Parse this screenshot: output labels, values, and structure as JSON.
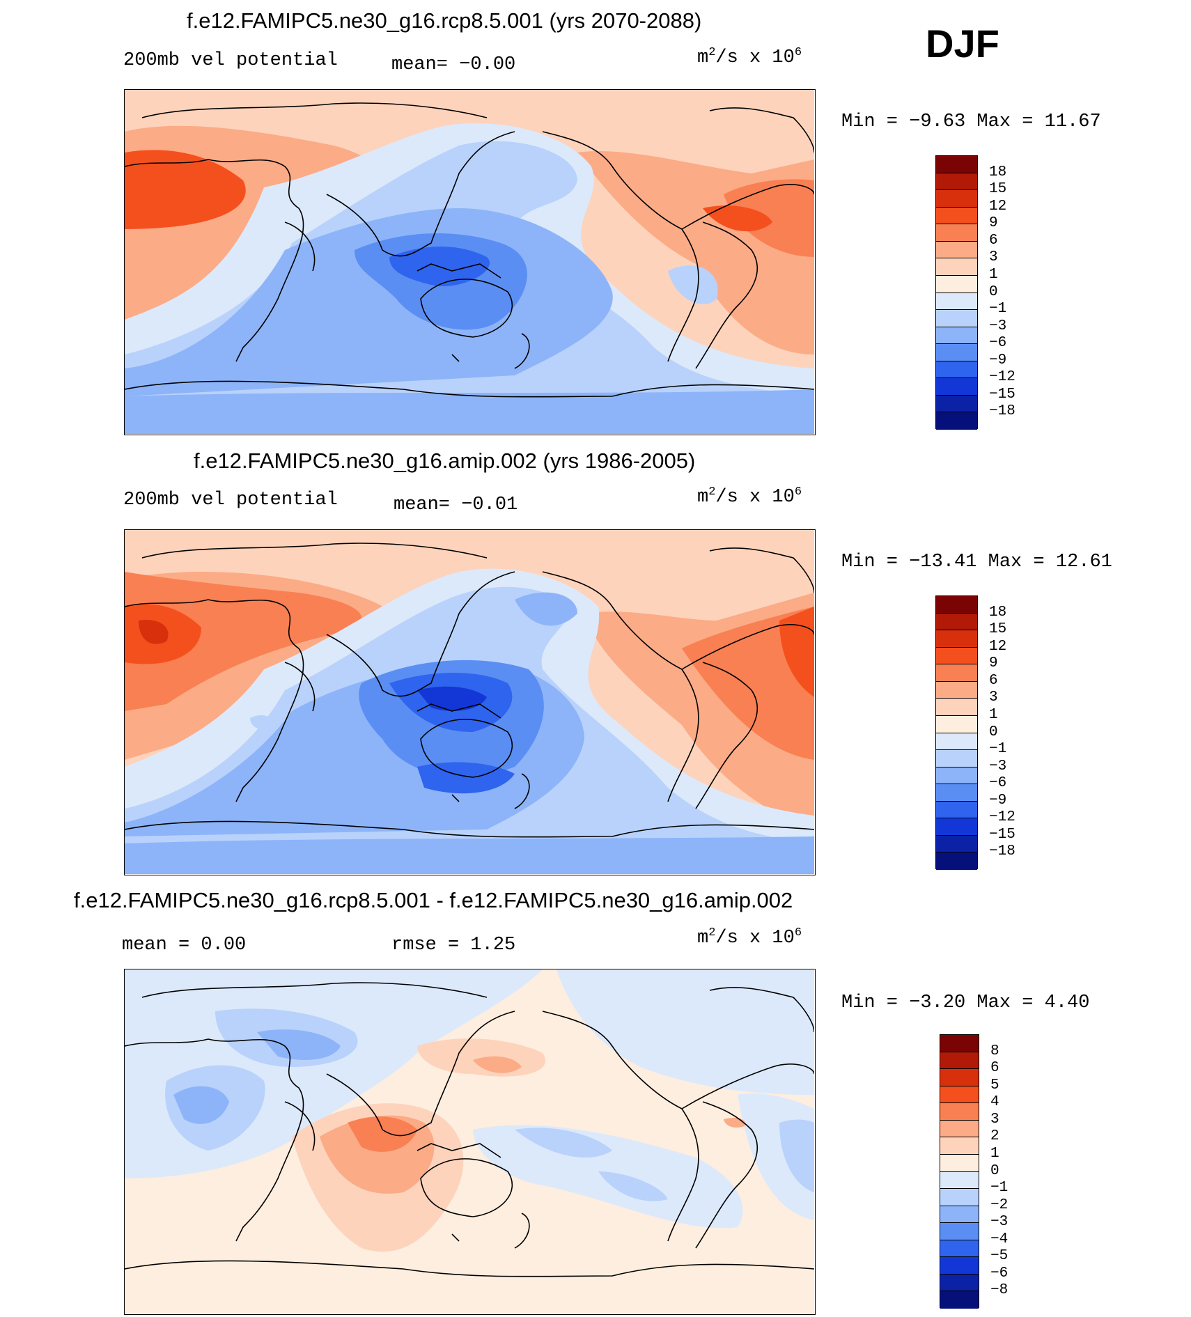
{
  "season": "DJF",
  "units_base": "m",
  "units_exp": "2",
  "units_mid": "/s x 10",
  "units_pow": "6",
  "panels": [
    {
      "title": "f.e12.FAMIPC5.ne30_g16.rcp8.5.001 (yrs 2070-2088)",
      "left": "200mb vel potential",
      "center": "mean=  −0.00",
      "minmax": "Min =  −9.63 Max =  11.67",
      "colorbar": {
        "labels": [
          "18",
          "15",
          "12",
          "9",
          "6",
          "3",
          "1",
          "0",
          "−1",
          "−3",
          "−6",
          "−9",
          "−12",
          "−15",
          "−18"
        ],
        "colors": [
          "#7a0403",
          "#b11a06",
          "#d8300d",
          "#f4501e",
          "#f98052",
          "#fbab86",
          "#fdd3bc",
          "#fdeedf",
          "#dce9fb",
          "#b9d2fb",
          "#8db4f8",
          "#5a8ef3",
          "#2f64ee",
          "#1237d6",
          "#0c22a6",
          "#06107a"
        ]
      },
      "stats": {
        "min": -9.63,
        "max": 11.67,
        "mean": -0.0
      }
    },
    {
      "title": "f.e12.FAMIPC5.ne30_g16.amip.002 (yrs 1986-2005)",
      "left": "200mb vel potential",
      "center": "mean=  −0.01",
      "minmax": "Min = −13.41 Max =  12.61",
      "colorbar": {
        "labels": [
          "18",
          "15",
          "12",
          "9",
          "6",
          "3",
          "1",
          "0",
          "−1",
          "−3",
          "−6",
          "−9",
          "−12",
          "−15",
          "−18"
        ],
        "colors": [
          "#7a0403",
          "#b11a06",
          "#d8300d",
          "#f4501e",
          "#f98052",
          "#fbab86",
          "#fdd3bc",
          "#fdeedf",
          "#dce9fb",
          "#b9d2fb",
          "#8db4f8",
          "#5a8ef3",
          "#2f64ee",
          "#1237d6",
          "#0c22a6",
          "#06107a"
        ]
      },
      "stats": {
        "min": -13.41,
        "max": 12.61,
        "mean": -0.01
      }
    },
    {
      "title": "f.e12.FAMIPC5.ne30_g16.rcp8.5.001 - f.e12.FAMIPC5.ne30_g16.amip.002",
      "left": "mean =    0.00",
      "center": "rmse =    1.25",
      "minmax": "Min =  −3.20 Max =   4.40",
      "colorbar": {
        "labels": [
          "8",
          "6",
          "5",
          "4",
          "3",
          "2",
          "1",
          "0",
          "−1",
          "−2",
          "−3",
          "−4",
          "−5",
          "−6",
          "−8"
        ],
        "colors": [
          "#7a0403",
          "#b11a06",
          "#d8300d",
          "#f4501e",
          "#f98052",
          "#fbab86",
          "#fdd3bc",
          "#fdeedf",
          "#dce9fb",
          "#b9d2fb",
          "#8db4f8",
          "#5a8ef3",
          "#2f64ee",
          "#1237d6",
          "#0c22a6",
          "#06107a"
        ]
      },
      "stats": {
        "min": -3.2,
        "max": 4.4,
        "mean": 0.0,
        "rmse": 1.25
      }
    }
  ]
}
